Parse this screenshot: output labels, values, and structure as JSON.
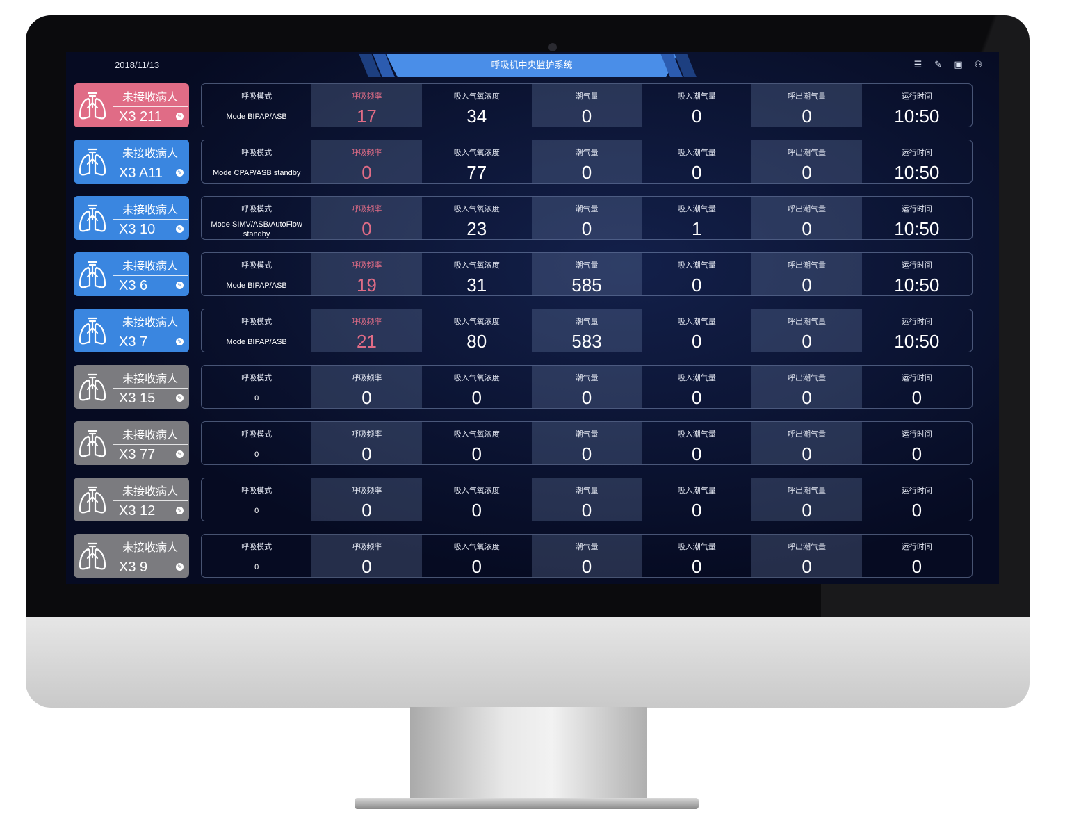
{
  "header": {
    "date": "2018/11/13",
    "title": "呼吸机中央监护系统",
    "icons": [
      "list-icon",
      "edit-icon",
      "layout-icon",
      "user-icon"
    ]
  },
  "columns": [
    "呼吸模式",
    "呼吸频率",
    "吸入气氧浓度",
    "潮气量",
    "吸入潮气量",
    "呼出潮气量",
    "运行时间"
  ],
  "colors": {
    "pink": "#e06c86",
    "blue": "#3a86e0",
    "gray": "#7b7b7f"
  },
  "rows": [
    {
      "status": "未接收病人",
      "bed": "X3 211",
      "color": "pink",
      "alert": true,
      "values": [
        "Mode BIPAP/ASB",
        "17",
        "34",
        "0",
        "0",
        "0",
        "10:50"
      ]
    },
    {
      "status": "未接收病人",
      "bed": "X3 A11",
      "color": "blue",
      "alert": true,
      "values": [
        "Mode CPAP/ASB standby",
        "0",
        "77",
        "0",
        "0",
        "0",
        "10:50"
      ]
    },
    {
      "status": "未接收病人",
      "bed": "X3 10",
      "color": "blue",
      "alert": true,
      "values": [
        "Mode SIMV/ASB/AutoFlow standby",
        "0",
        "23",
        "0",
        "1",
        "0",
        "10:50"
      ]
    },
    {
      "status": "未接收病人",
      "bed": "X3 6",
      "color": "blue",
      "alert": true,
      "values": [
        "Mode BIPAP/ASB",
        "19",
        "31",
        "585",
        "0",
        "0",
        "10:50"
      ]
    },
    {
      "status": "未接收病人",
      "bed": "X3 7",
      "color": "blue",
      "alert": true,
      "values": [
        "Mode BIPAP/ASB",
        "21",
        "80",
        "583",
        "0",
        "0",
        "10:50"
      ]
    },
    {
      "status": "未接收病人",
      "bed": "X3 15",
      "color": "gray",
      "alert": false,
      "values": [
        "0",
        "0",
        "0",
        "0",
        "0",
        "0",
        "0"
      ]
    },
    {
      "status": "未接收病人",
      "bed": "X3 77",
      "color": "gray",
      "alert": false,
      "values": [
        "0",
        "0",
        "0",
        "0",
        "0",
        "0",
        "0"
      ]
    },
    {
      "status": "未接收病人",
      "bed": "X3 12",
      "color": "gray",
      "alert": false,
      "values": [
        "0",
        "0",
        "0",
        "0",
        "0",
        "0",
        "0"
      ]
    },
    {
      "status": "未接收病人",
      "bed": "X3 9",
      "color": "gray",
      "alert": false,
      "values": [
        "0",
        "0",
        "0",
        "0",
        "0",
        "0",
        "0"
      ]
    }
  ]
}
